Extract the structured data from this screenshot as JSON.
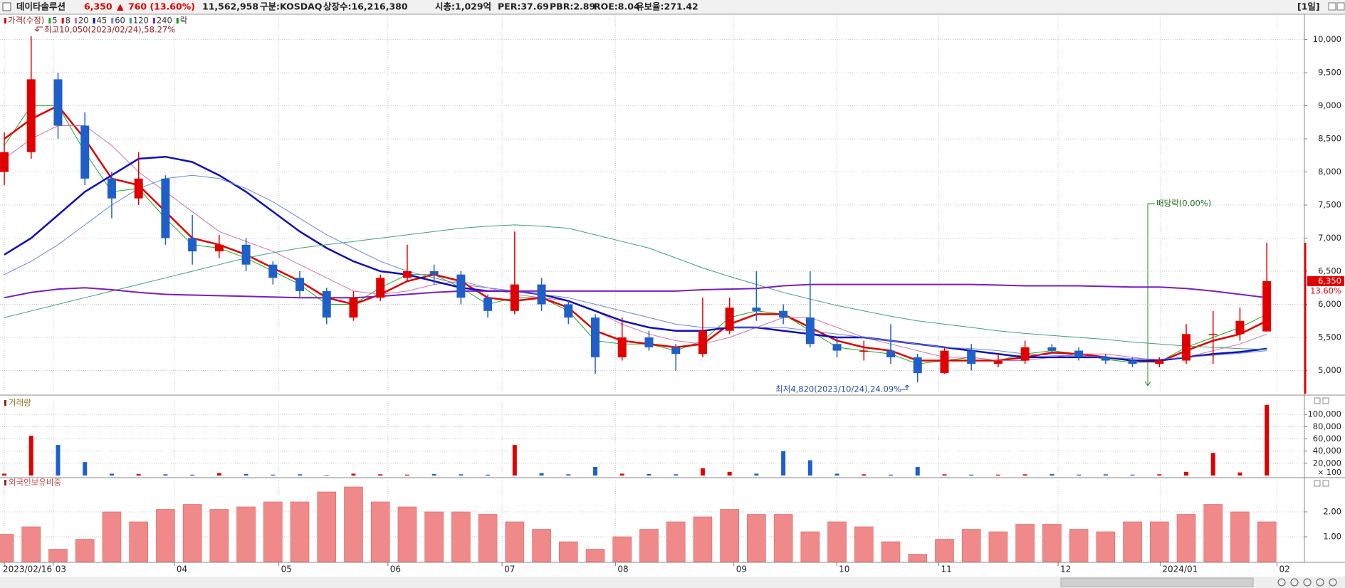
{
  "header": {
    "name": "데이타솔루션",
    "price": "6,350",
    "change_mark": "▲",
    "change": "760 (13.60%)",
    "volume": "11,562,958",
    "market": "구분:KOSDAQ",
    "listed": "상장수:16,216,380",
    "cap": "시총:1,029억",
    "per": "PER:37.69",
    "pbr": "PBR:2.89",
    "roe": "ROE:8.04",
    "reserve": "유보율:271.42",
    "period": "[1일]"
  },
  "chart_data": [
    {
      "type": "candlestick",
      "legend_title": "가격(수정)",
      "legend_extra": "락",
      "legend_extra_color": "#1a8a1a",
      "up_color": "#e00000",
      "down_color": "#1f5fc8",
      "open": [
        8000,
        8300,
        9400,
        8700,
        7900,
        7600,
        7900,
        7000,
        6800,
        6900,
        6600,
        6400,
        6200,
        5800,
        6100,
        6400,
        6500,
        6450,
        6100,
        5900,
        6300,
        6000,
        5800,
        5200,
        5500,
        5350,
        5250,
        5600,
        5950,
        5900,
        5800,
        5400,
        5300,
        5300,
        5200,
        4960,
        5300,
        5100,
        5150,
        5350,
        5300,
        5200,
        5150,
        5100,
        5150,
        5550,
        5550,
        5590
      ],
      "high": [
        8600,
        10050,
        9500,
        8900,
        8000,
        8300,
        7950,
        7350,
        7050,
        7000,
        6650,
        6500,
        6250,
        6200,
        6450,
        6900,
        6600,
        6500,
        6150,
        7100,
        6400,
        6050,
        5850,
        5800,
        5600,
        5400,
        6100,
        6100,
        6500,
        6000,
        6500,
        5500,
        5450,
        5700,
        5250,
        5350,
        5400,
        5250,
        5450,
        5400,
        5350,
        5250,
        5200,
        5200,
        5700,
        5900,
        5950,
        6930
      ],
      "low": [
        7800,
        8200,
        8500,
        7800,
        7300,
        7500,
        6900,
        6600,
        6700,
        6500,
        6300,
        6100,
        5700,
        5750,
        6050,
        6350,
        6300,
        6000,
        5800,
        5850,
        5900,
        5700,
        4950,
        5150,
        5300,
        5000,
        5200,
        5550,
        5750,
        5700,
        5350,
        5200,
        5150,
        5100,
        4820,
        4950,
        5000,
        5050,
        5100,
        5250,
        5150,
        5100,
        5050,
        5050,
        5100,
        5100,
        5450,
        5590
      ],
      "close": [
        8300,
        9400,
        8700,
        7900,
        7600,
        7900,
        7000,
        6800,
        6900,
        6600,
        6400,
        6200,
        5800,
        6100,
        6400,
        6500,
        6450,
        6100,
        5900,
        6300,
        6000,
        5800,
        5200,
        5500,
        5350,
        5250,
        5600,
        5950,
        5900,
        5800,
        5400,
        5300,
        5300,
        5200,
        4960,
        5300,
        5100,
        5150,
        5350,
        5300,
        5200,
        5150,
        5100,
        5150,
        5550,
        5550,
        5750,
        6350
      ],
      "series": [
        {
          "name": "5",
          "color": "#22a822",
          "width": 1,
          "values": [
            8400,
            9000,
            9000,
            8300,
            7700,
            7750,
            7300,
            6900,
            6850,
            6700,
            6500,
            6300,
            6000,
            6000,
            6250,
            6450,
            6450,
            6250,
            6000,
            6100,
            6100,
            5900,
            5450,
            5400,
            5400,
            5300,
            5450,
            5800,
            5900,
            5850,
            5600,
            5350,
            5300,
            5250,
            5100,
            5150,
            5200,
            5150,
            5250,
            5300,
            5250,
            5170,
            5120,
            5130,
            5350,
            5500,
            5650,
            5850
          ]
        },
        {
          "name": "8",
          "color": "#e00000",
          "width": 2.5,
          "values": [
            8500,
            8800,
            9000,
            8500,
            7900,
            7800,
            7400,
            7000,
            6900,
            6750,
            6550,
            6350,
            6100,
            6000,
            6150,
            6350,
            6450,
            6350,
            6100,
            6050,
            6100,
            5950,
            5600,
            5450,
            5400,
            5350,
            5400,
            5700,
            5850,
            5850,
            5650,
            5450,
            5350,
            5300,
            5150,
            5150,
            5150,
            5150,
            5200,
            5270,
            5250,
            5200,
            5150,
            5130,
            5300,
            5450,
            5550,
            5750
          ]
        },
        {
          "name": "20",
          "color": "#d070b0",
          "width": 1,
          "values": [
            8200,
            8500,
            8700,
            8700,
            8400,
            8000,
            7700,
            7400,
            7100,
            6950,
            6800,
            6600,
            6400,
            6200,
            6150,
            6200,
            6300,
            6350,
            6250,
            6150,
            6100,
            6050,
            5900,
            5700,
            5550,
            5450,
            5400,
            5500,
            5650,
            5800,
            5800,
            5650,
            5500,
            5400,
            5300,
            5200,
            5200,
            5150,
            5150,
            5200,
            5250,
            5250,
            5200,
            5150,
            5200,
            5300,
            5400,
            5550
          ]
        },
        {
          "name": "45",
          "color": "#1010b8",
          "width": 2.5,
          "values": [
            6750,
            7000,
            7350,
            7700,
            7950,
            8200,
            8230,
            8150,
            7950,
            7700,
            7400,
            7100,
            6850,
            6650,
            6500,
            6450,
            6350,
            6250,
            6200,
            6200,
            6150,
            6050,
            5900,
            5750,
            5650,
            5600,
            5600,
            5650,
            5650,
            5600,
            5550,
            5500,
            5500,
            5450,
            5400,
            5350,
            5300,
            5250,
            5200,
            5200,
            5200,
            5200,
            5150,
            5150,
            5200,
            5250,
            5280,
            5330
          ]
        },
        {
          "name": "60",
          "color": "#6a86d8",
          "width": 1,
          "values": [
            6450,
            6650,
            6900,
            7200,
            7500,
            7750,
            7900,
            7950,
            7900,
            7750,
            7550,
            7300,
            7050,
            6850,
            6650,
            6500,
            6400,
            6300,
            6250,
            6200,
            6150,
            6100,
            6000,
            5900,
            5800,
            5700,
            5650,
            5650,
            5650,
            5650,
            5600,
            5550,
            5500,
            5450,
            5400,
            5350,
            5330,
            5300,
            5250,
            5230,
            5220,
            5200,
            5180,
            5170,
            5200,
            5230,
            5260,
            5300
          ]
        },
        {
          "name": "120",
          "color": "#3fa07c",
          "width": 1,
          "values": [
            5800,
            5900,
            6000,
            6100,
            6200,
            6300,
            6400,
            6500,
            6600,
            6700,
            6780,
            6850,
            6900,
            6950,
            7000,
            7050,
            7100,
            7150,
            7180,
            7200,
            7180,
            7150,
            7050,
            6950,
            6850,
            6700,
            6550,
            6420,
            6300,
            6180,
            6080,
            5980,
            5900,
            5820,
            5750,
            5700,
            5650,
            5600,
            5560,
            5530,
            5500,
            5470,
            5430,
            5400,
            5370,
            5350,
            5330,
            5320
          ]
        },
        {
          "name": "240",
          "color": "#7a1cc0",
          "width": 2,
          "values": [
            6100,
            6180,
            6230,
            6250,
            6220,
            6180,
            6150,
            6140,
            6130,
            6120,
            6110,
            6100,
            6100,
            6100,
            6120,
            6150,
            6180,
            6200,
            6200,
            6200,
            6200,
            6200,
            6200,
            6200,
            6200,
            6200,
            6220,
            6230,
            6240,
            6280,
            6300,
            6300,
            6300,
            6300,
            6300,
            6300,
            6300,
            6290,
            6280,
            6280,
            6280,
            6270,
            6260,
            6260,
            6240,
            6200,
            6150,
            6100
          ]
        }
      ],
      "ylim": [
        4650,
        10340
      ],
      "yticks": [
        {
          "value": 5000,
          "label": "5,000"
        },
        {
          "value": 5500,
          "label": "5,500"
        },
        {
          "value": 6000,
          "label": "6,000"
        },
        {
          "value": 6500,
          "label": "6,500"
        },
        {
          "value": 7000,
          "label": "7,000"
        },
        {
          "value": 7500,
          "label": "7,500"
        },
        {
          "value": 8000,
          "label": "8,000"
        },
        {
          "value": 8500,
          "label": "8,500"
        },
        {
          "value": 9000,
          "label": "9,000"
        },
        {
          "value": 9500,
          "label": "9,500"
        },
        {
          "value": 10000,
          "label": "10,000"
        }
      ],
      "grid": true,
      "annotations": [
        "최고10,050(2023/02/24),58.27%",
        "최저4,820(2023/10/24),24.09%",
        "배당락(0.00%)"
      ],
      "current_price": {
        "value": 6350,
        "label": "6,350"
      },
      "current_change": "13.60%"
    },
    {
      "type": "bar",
      "title": "거래량",
      "unit_label": "× 100",
      "values": [
        3000,
        65000,
        50000,
        22000,
        3000,
        2500,
        2000,
        1500,
        4000,
        2500,
        1500,
        2000,
        1000,
        3000,
        2000,
        1500,
        2500,
        2000,
        1500,
        50000,
        4000,
        2000,
        14000,
        3000,
        2500,
        2000,
        12000,
        6000,
        3000,
        40000,
        25000,
        3000,
        2000,
        1500,
        14000,
        2000,
        1500,
        1500,
        2000,
        2500,
        1500,
        2000,
        1500,
        2000,
        6000,
        37000,
        5000,
        115630
      ],
      "ylim": [
        0,
        120000
      ],
      "yticks": [
        {
          "value": 20000,
          "label": "20,000"
        },
        {
          "value": 40000,
          "label": "40,000"
        },
        {
          "value": 60000,
          "label": "60,000"
        },
        {
          "value": 80000,
          "label": "80,000"
        },
        {
          "value": 100000,
          "label": "100,000"
        }
      ],
      "grid": true
    },
    {
      "type": "bar",
      "title": "외국인보유비중",
      "color": "#f08a8a",
      "values": [
        1.1,
        1.4,
        0.5,
        0.9,
        2.0,
        1.6,
        2.1,
        2.3,
        2.1,
        2.2,
        2.4,
        2.4,
        2.8,
        3.0,
        2.4,
        2.2,
        2.0,
        2.0,
        1.9,
        1.6,
        1.3,
        0.8,
        0.5,
        1.0,
        1.3,
        1.6,
        1.8,
        2.1,
        1.9,
        1.9,
        1.2,
        1.6,
        1.4,
        0.8,
        0.3,
        0.9,
        1.3,
        1.2,
        1.5,
        1.5,
        1.3,
        1.2,
        1.6,
        1.6,
        1.9,
        2.3,
        2.0,
        1.6
      ],
      "ylim": [
        0,
        3.2
      ],
      "yticks": [
        {
          "value": 1,
          "label": "1.00"
        },
        {
          "value": 2,
          "label": "2.00"
        }
      ],
      "grid": true,
      "xlim": [
        -0.16,
        48.4
      ],
      "xticks": [
        {
          "value": 0,
          "label": "2023/02/16"
        },
        {
          "value": 1.82,
          "label": "03"
        },
        {
          "value": 6.33,
          "label": "04"
        },
        {
          "value": 10.22,
          "label": "05"
        },
        {
          "value": 14.28,
          "label": "06"
        },
        {
          "value": 18.53,
          "label": "07"
        },
        {
          "value": 22.75,
          "label": "08"
        },
        {
          "value": 27.16,
          "label": "09"
        },
        {
          "value": 30.99,
          "label": "10"
        },
        {
          "value": 34.79,
          "label": "11"
        },
        {
          "value": 39.23,
          "label": "12"
        },
        {
          "value": 43.03,
          "label": "2024/01"
        },
        {
          "value": 47.38,
          "label": "02"
        }
      ]
    }
  ]
}
